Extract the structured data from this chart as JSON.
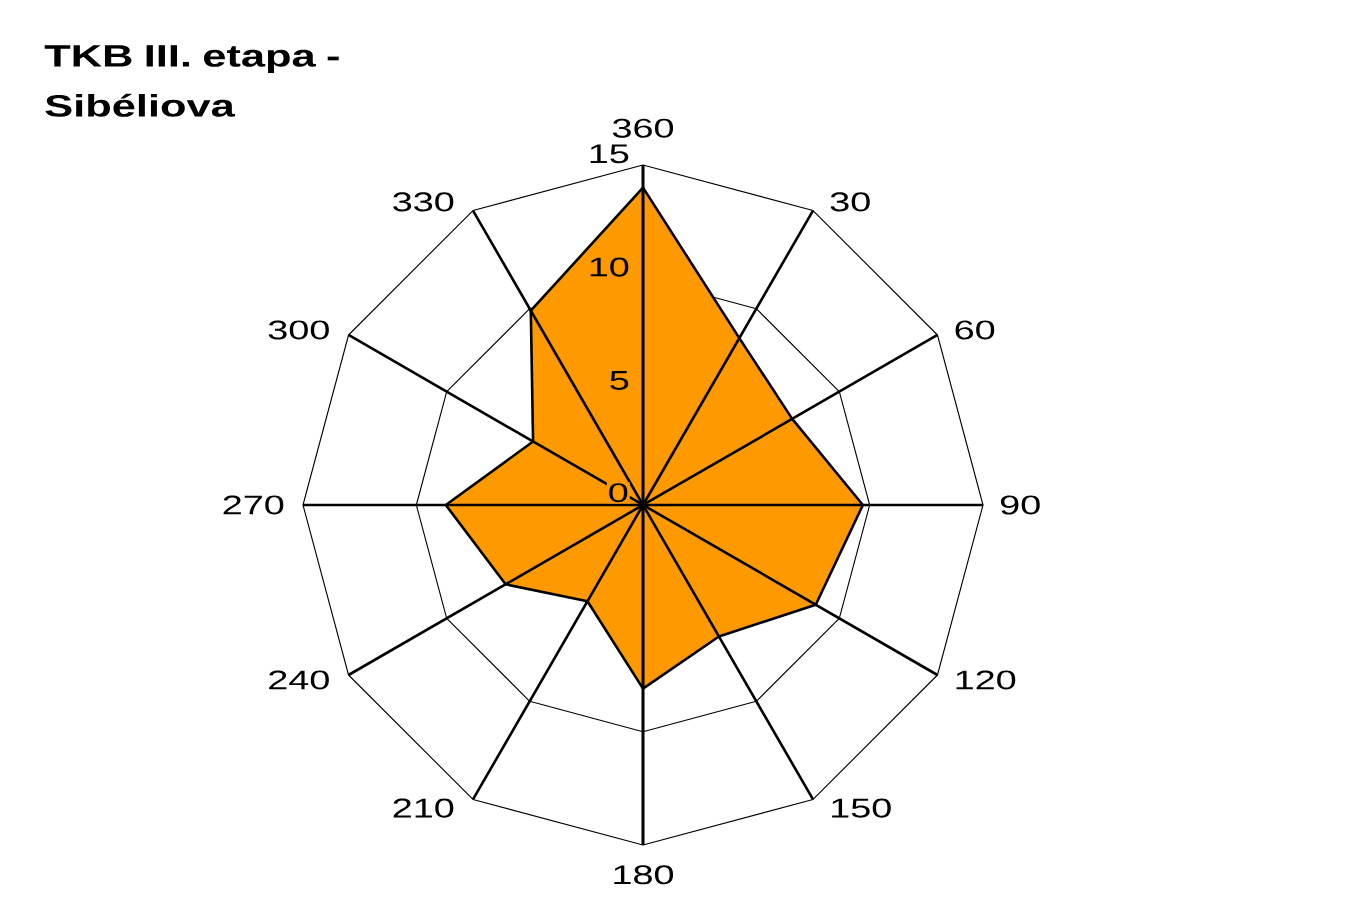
{
  "chart_data": {
    "type": "radar",
    "title": "TKB III. etapa - Sibéliova",
    "categories": [
      "360",
      "30",
      "60",
      "90",
      "120",
      "150",
      "180",
      "210",
      "240",
      "270",
      "300",
      "330"
    ],
    "series": [
      {
        "type": "area",
        "color": "#ff9900",
        "values": [
          14,
          8.5,
          7.6,
          9.7,
          8.8,
          6.7,
          8.1,
          4.9,
          7.0,
          8.7,
          5.6,
          9.9
        ]
      }
    ],
    "ylim": [
      0,
      15
    ],
    "yticks": [
      0,
      5,
      10,
      15
    ],
    "grid": true
  }
}
